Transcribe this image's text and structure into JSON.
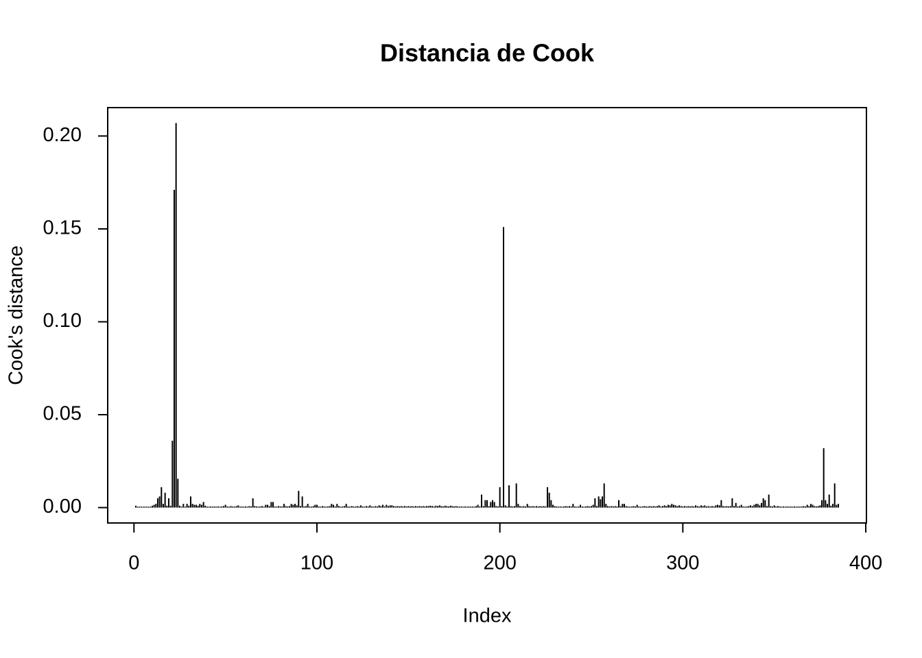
{
  "chart_data": {
    "type": "h",
    "title": "Distancia de Cook",
    "xlabel": "Index",
    "ylabel": "Cook's distance",
    "color": "#000000",
    "xlim": [
      -14.36,
      400.36
    ],
    "ylim": [
      -0.00828,
      0.21528
    ],
    "xticks": [
      0,
      100,
      200,
      300,
      400
    ],
    "yticks": [
      {
        "value": 0,
        "label": "0.00"
      },
      {
        "value": 0.05,
        "label": "0.05"
      },
      {
        "value": 0.1,
        "label": "0.10"
      },
      {
        "value": 0.15,
        "label": "0.15"
      },
      {
        "value": 0.2,
        "label": "0.20"
      }
    ],
    "x": [
      1,
      2,
      3,
      4,
      5,
      6,
      7,
      8,
      9,
      10,
      11,
      12,
      13,
      14,
      15,
      16,
      17,
      18,
      19,
      20,
      21,
      22,
      23,
      24,
      25,
      26,
      27,
      28,
      29,
      30,
      31,
      32,
      33,
      34,
      35,
      36,
      37,
      38,
      39,
      40,
      41,
      42,
      43,
      44,
      45,
      46,
      47,
      48,
      49,
      50,
      51,
      52,
      53,
      54,
      55,
      56,
      57,
      58,
      59,
      60,
      61,
      62,
      63,
      64,
      65,
      66,
      67,
      68,
      69,
      70,
      71,
      72,
      73,
      74,
      75,
      76,
      77,
      78,
      79,
      80,
      81,
      82,
      83,
      84,
      85,
      86,
      87,
      88,
      89,
      90,
      91,
      92,
      93,
      94,
      95,
      96,
      97,
      98,
      99,
      100,
      101,
      102,
      103,
      104,
      105,
      106,
      107,
      108,
      109,
      110,
      111,
      112,
      113,
      114,
      115,
      116,
      117,
      118,
      119,
      120,
      121,
      122,
      123,
      124,
      125,
      126,
      127,
      128,
      129,
      130,
      131,
      132,
      133,
      134,
      135,
      136,
      137,
      138,
      139,
      140,
      141,
      142,
      143,
      144,
      145,
      146,
      147,
      148,
      149,
      150,
      151,
      152,
      153,
      154,
      155,
      156,
      157,
      158,
      159,
      160,
      161,
      162,
      163,
      164,
      165,
      166,
      167,
      168,
      169,
      170,
      171,
      172,
      173,
      174,
      175,
      176,
      177,
      178,
      179,
      180,
      181,
      182,
      183,
      184,
      185,
      186,
      187,
      188,
      189,
      190,
      191,
      192,
      193,
      194,
      195,
      196,
      197,
      198,
      199,
      200,
      201,
      202,
      203,
      204,
      205,
      206,
      207,
      208,
      209,
      210,
      211,
      212,
      213,
      214,
      215,
      216,
      217,
      218,
      219,
      220,
      221,
      222,
      223,
      224,
      225,
      226,
      227,
      228,
      229,
      230,
      231,
      232,
      233,
      234,
      235,
      236,
      237,
      238,
      239,
      240,
      241,
      242,
      243,
      244,
      245,
      246,
      247,
      248,
      249,
      250,
      251,
      252,
      253,
      254,
      255,
      256,
      257,
      258,
      259,
      260,
      261,
      262,
      263,
      264,
      265,
      266,
      267,
      268,
      269,
      270,
      271,
      272,
      273,
      274,
      275,
      276,
      277,
      278,
      279,
      280,
      281,
      282,
      283,
      284,
      285,
      286,
      287,
      288,
      289,
      290,
      291,
      292,
      293,
      294,
      295,
      296,
      297,
      298,
      299,
      300,
      301,
      302,
      303,
      304,
      305,
      306,
      307,
      308,
      309,
      310,
      311,
      312,
      313,
      314,
      315,
      316,
      317,
      318,
      319,
      320,
      321,
      322,
      323,
      324,
      325,
      326,
      327,
      328,
      329,
      330,
      331,
      332,
      333,
      334,
      335,
      336,
      337,
      338,
      339,
      340,
      341,
      342,
      343,
      344,
      345,
      346,
      347,
      348,
      349,
      350,
      351,
      352,
      353,
      354,
      355,
      356,
      357,
      358,
      359,
      360,
      361,
      362,
      363,
      364,
      365,
      366,
      367,
      368,
      369,
      370,
      371,
      372,
      373,
      374,
      375,
      376,
      377,
      378,
      379,
      380,
      381,
      382,
      383,
      384,
      385
    ],
    "values": [
      0.001,
      0.0005,
      0.0005,
      0.0005,
      0.0005,
      0.0005,
      0.0005,
      0.0005,
      0.0005,
      0.001,
      0.0015,
      0.002,
      0.005,
      0.006,
      0.011,
      0.002,
      0.008,
      0.001,
      0.005,
      0.001,
      0.036,
      0.171,
      0.207,
      0.0155,
      0.001,
      0.0005,
      0.002,
      0.0005,
      0.002,
      0.001,
      0.006,
      0.002,
      0.0015,
      0.0015,
      0.001,
      0.002,
      0.0015,
      0.003,
      0.001,
      0.0005,
      0.0005,
      0.0006,
      0.0005,
      0.0006,
      0.0005,
      0.0006,
      0.0005,
      0.0006,
      0.0008,
      0.0015,
      0.0006,
      0.0005,
      0.0008,
      0.0006,
      0.0005,
      0.0008,
      0.0012,
      0.0005,
      0.0006,
      0.0005,
      0.0006,
      0.0005,
      0.0008,
      0.0006,
      0.005,
      0.0008,
      0.0006,
      0.0005,
      0.0006,
      0.0008,
      0.0005,
      0.0015,
      0.0015,
      0.0008,
      0.003,
      0.003,
      0.0006,
      0.0005,
      0.0008,
      0.0006,
      0.0006,
      0.002,
      0.0008,
      0.0006,
      0.0008,
      0.002,
      0.0015,
      0.002,
      0.0012,
      0.009,
      0.0008,
      0.006,
      0.0006,
      0.0008,
      0.002,
      0.0006,
      0.0005,
      0.0008,
      0.0015,
      0.0015,
      0.0006,
      0.0005,
      0.0008,
      0.0006,
      0.0005,
      0.0006,
      0.0008,
      0.002,
      0.0015,
      0.0006,
      0.002,
      0.0008,
      0.0005,
      0.0006,
      0.0008,
      0.002,
      0.0006,
      0.0005,
      0.0008,
      0.0006,
      0.0005,
      0.0008,
      0.0006,
      0.0012,
      0.0006,
      0.0005,
      0.0008,
      0.0006,
      0.0012,
      0.0006,
      0.0005,
      0.0008,
      0.0006,
      0.0012,
      0.0008,
      0.0015,
      0.0006,
      0.0015,
      0.0008,
      0.0012,
      0.0012,
      0.0008,
      0.0006,
      0.0008,
      0.0006,
      0.0008,
      0.0006,
      0.0008,
      0.0006,
      0.0008,
      0.0006,
      0.0008,
      0.0006,
      0.0008,
      0.0006,
      0.0008,
      0.0006,
      0.0008,
      0.0006,
      0.0008,
      0.0008,
      0.001,
      0.0008,
      0.0006,
      0.001,
      0.0008,
      0.0012,
      0.0008,
      0.0006,
      0.001,
      0.0008,
      0.0006,
      0.001,
      0.0008,
      0.0006,
      0.0008,
      0.0006,
      0.0005,
      0.0006,
      0.0005,
      0.0006,
      0.0005,
      0.0006,
      0.0005,
      0.0006,
      0.0005,
      0.0008,
      0.0015,
      0.0006,
      0.007,
      0.0008,
      0.004,
      0.004,
      0.0008,
      0.003,
      0.004,
      0.003,
      0.0008,
      0.0006,
      0.011,
      0.0008,
      0.151,
      0.0012,
      0.0006,
      0.012,
      0.0008,
      0.0006,
      0.0008,
      0.013,
      0.002,
      0.0008,
      0.0006,
      0.0008,
      0.0006,
      0.002,
      0.0008,
      0.0006,
      0.0008,
      0.0006,
      0.0008,
      0.0006,
      0.0008,
      0.0006,
      0.0008,
      0.0006,
      0.011,
      0.008,
      0.004,
      0.0015,
      0.0008,
      0.0006,
      0.0005,
      0.0006,
      0.0005,
      0.0006,
      0.0008,
      0.0006,
      0.0008,
      0.0006,
      0.002,
      0.0006,
      0.0005,
      0.0006,
      0.0015,
      0.0006,
      0.0005,
      0.0006,
      0.0008,
      0.0006,
      0.0008,
      0.0015,
      0.005,
      0.0008,
      0.006,
      0.0045,
      0.006,
      0.013,
      0.002,
      0.0008,
      0.0006,
      0.0008,
      0.0006,
      0.0008,
      0.0006,
      0.004,
      0.0008,
      0.002,
      0.002,
      0.0008,
      0.0006,
      0.0005,
      0.0006,
      0.0008,
      0.0006,
      0.0015,
      0.0006,
      0.0005,
      0.0006,
      0.0008,
      0.0006,
      0.0006,
      0.0008,
      0.0006,
      0.0008,
      0.0006,
      0.0008,
      0.0012,
      0.0006,
      0.0008,
      0.0012,
      0.0008,
      0.0015,
      0.0012,
      0.002,
      0.0015,
      0.0012,
      0.0008,
      0.0012,
      0.0008,
      0.0006,
      0.0008,
      0.0006,
      0.0008,
      0.0006,
      0.0008,
      0.0006,
      0.0012,
      0.0008,
      0.0006,
      0.0012,
      0.0008,
      0.0012,
      0.0006,
      0.0008,
      0.0006,
      0.0008,
      0.0006,
      0.0012,
      0.0015,
      0.0012,
      0.004,
      0.0008,
      0.0006,
      0.0008,
      0.0006,
      0.0008,
      0.005,
      0.0008,
      0.0025,
      0.0006,
      0.0008,
      0.0015,
      0.0006,
      0.0005,
      0.0006,
      0.0008,
      0.0012,
      0.0008,
      0.0015,
      0.002,
      0.002,
      0.0012,
      0.0025,
      0.005,
      0.004,
      0.0008,
      0.007,
      0.0008,
      0.0006,
      0.0012,
      0.0006,
      0.0008,
      0.0006,
      0.0005,
      0.0006,
      0.0005,
      0.0006,
      0.0005,
      0.0006,
      0.0005,
      0.0006,
      0.0005,
      0.0006,
      0.0005,
      0.0006,
      0.0008,
      0.0006,
      0.0015,
      0.0008,
      0.002,
      0.0015,
      0.0008,
      0.0006,
      0.0008,
      0.0012,
      0.004,
      0.032,
      0.004,
      0.002,
      0.007,
      0.001,
      0.002,
      0.013,
      0.0015,
      0.002
    ]
  }
}
